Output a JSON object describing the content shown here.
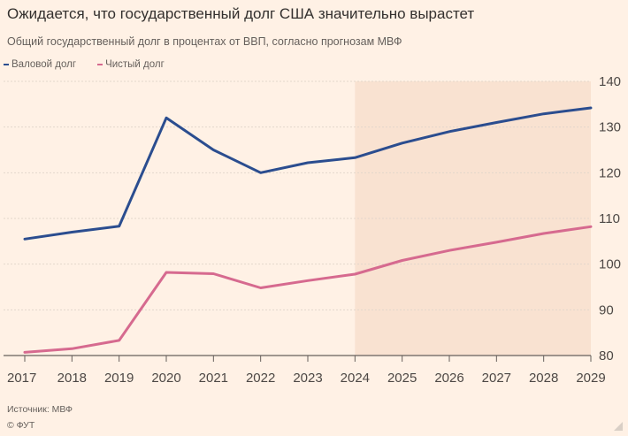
{
  "title": "Ожидается, что государственный долг США значительно вырастет",
  "subtitle": "Общий государственный долг в процентах от ВВП, согласно прогнозам МВФ",
  "source": "Источник: МВФ",
  "copyright": "© ФУТ",
  "colors": {
    "gross": "#2b4d8f",
    "net": "#d66a8f",
    "forecast_band": "#f9e2d1",
    "grid": "#e3d7cc",
    "background": "#fff1e5"
  },
  "chart_data": {
    "type": "line",
    "title": "Ожидается, что государственный долг США значительно вырастет",
    "subtitle": "Общий государственный долг в процентах от ВВП, согласно прогнозам МВФ",
    "x": [
      "2017",
      "2018",
      "2019",
      "2020",
      "2021",
      "2022",
      "2023",
      "2024",
      "2025",
      "2026",
      "2027",
      "2028",
      "2029"
    ],
    "series": [
      {
        "name": "Валовой долг",
        "color": "#2b4d8f",
        "values": [
          105.5,
          107,
          108.3,
          132,
          125,
          120,
          122.2,
          123.3,
          126.5,
          129,
          131,
          132.9,
          134.2
        ]
      },
      {
        "name": "Чистый долг",
        "color": "#d66a8f",
        "values": [
          80.7,
          81.5,
          83.3,
          98.2,
          97.9,
          94.8,
          96.4,
          97.8,
          100.8,
          103,
          104.8,
          106.7,
          108.2
        ]
      }
    ],
    "ylim": [
      80,
      140
    ],
    "yticks": [
      80,
      90,
      100,
      110,
      120,
      130,
      140
    ],
    "forecast_from": "2024",
    "xlabel": "",
    "ylabel": "",
    "legend": "top-left",
    "grid": true
  }
}
